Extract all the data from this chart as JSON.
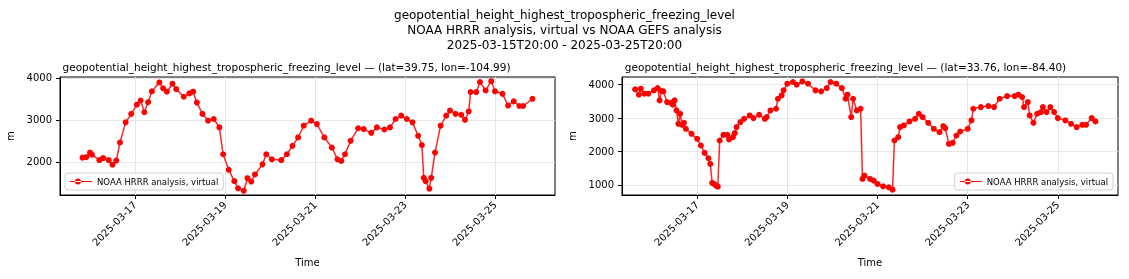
{
  "chart_data": [
    {
      "type": "line",
      "title": "geopotential_height_highest_tropospheric_freezing_level — (lat=39.75, lon=-104.99)",
      "annotations": [
        "geopotential_height_highest_tropospheric_freezing_level",
        "NOAA HRRR analysis, virtual vs NOAA GEFS analysis",
        "2025-03-15T20:00 - 2025-03-25T20:00"
      ],
      "xlabel": "Time",
      "ylabel": "m",
      "xlim": [
        "2025-03-15T08:00",
        "2025-03-26T08:00"
      ],
      "ylim": [
        1210,
        4020
      ],
      "xticks": [
        "2025-03-17",
        "2025-03-19",
        "2025-03-21",
        "2025-03-23",
        "2025-03-25"
      ],
      "yticks": [
        2000,
        3000,
        4000
      ],
      "grid": true,
      "legend": "bottom left",
      "marker": "circle",
      "line_style": "solid",
      "x": [
        "2025-03-15T20:00",
        "2025-03-15T22:00",
        "2025-03-16T00:00",
        "2025-03-16T01:00",
        "2025-03-16T05:00",
        "2025-03-16T07:00",
        "2025-03-16T10:00",
        "2025-03-16T12:00",
        "2025-03-16T14:00",
        "2025-03-16T16:00",
        "2025-03-16T19:00",
        "2025-03-16T22:00",
        "2025-03-17T01:00",
        "2025-03-17T03:00",
        "2025-03-17T05:00",
        "2025-03-17T07:00",
        "2025-03-17T09:00",
        "2025-03-17T13:00",
        "2025-03-17T15:00",
        "2025-03-17T17:00",
        "2025-03-17T20:00",
        "2025-03-17T22:00",
        "2025-03-18T02:00",
        "2025-03-18T05:00",
        "2025-03-18T07:00",
        "2025-03-18T09:00",
        "2025-03-18T12:00",
        "2025-03-18T15:00",
        "2025-03-18T18:00",
        "2025-03-18T21:00",
        "2025-03-18T23:00",
        "2025-03-19T02:00",
        "2025-03-19T05:00",
        "2025-03-19T07:00",
        "2025-03-19T10:00",
        "2025-03-19T12:00",
        "2025-03-19T14:00",
        "2025-03-19T16:00",
        "2025-03-19T20:00",
        "2025-03-19T22:00",
        "2025-03-20T01:00",
        "2025-03-20T06:00",
        "2025-03-20T09:00",
        "2025-03-20T12:00",
        "2025-03-20T15:00",
        "2025-03-20T18:00",
        "2025-03-20T22:00",
        "2025-03-21T01:00",
        "2025-03-21T05:00",
        "2025-03-21T09:00",
        "2025-03-21T12:00",
        "2025-03-21T14:00",
        "2025-03-21T16:00",
        "2025-03-21T19:00",
        "2025-03-21T23:00",
        "2025-03-22T02:00",
        "2025-03-22T06:00",
        "2025-03-22T09:00",
        "2025-03-22T13:00",
        "2025-03-22T16:00",
        "2025-03-22T19:00",
        "2025-03-22T22:00",
        "2025-03-23T01:00",
        "2025-03-23T04:00",
        "2025-03-23T07:00",
        "2025-03-23T09:00",
        "2025-03-23T10:00",
        "2025-03-23T11:00",
        "2025-03-23T13:00",
        "2025-03-23T14:00",
        "2025-03-23T16:00",
        "2025-03-23T19:00",
        "2025-03-23T22:00",
        "2025-03-24T00:00",
        "2025-03-24T03:00",
        "2025-03-24T06:00",
        "2025-03-24T08:00",
        "2025-03-24T10:00",
        "2025-03-24T11:00",
        "2025-03-24T14:00",
        "2025-03-24T16:00",
        "2025-03-24T19:00",
        "2025-03-24T22:00",
        "2025-03-25T00:00",
        "2025-03-25T04:00",
        "2025-03-25T07:00",
        "2025-03-25T10:00",
        "2025-03-25T13:00",
        "2025-03-25T15:00",
        "2025-03-25T20:00"
      ],
      "series": [
        {
          "name": "NOAA HRRR analysis, virtual",
          "color": "#ff0000",
          "values": [
            2100,
            2110,
            2220,
            2170,
            2040,
            2090,
            2040,
            1930,
            2030,
            2460,
            2940,
            3140,
            3360,
            3460,
            3180,
            3420,
            3680,
            3890,
            3750,
            3670,
            3860,
            3730,
            3550,
            3630,
            3670,
            3410,
            3140,
            2980,
            3020,
            2820,
            2180,
            1810,
            1540,
            1370,
            1310,
            1610,
            1530,
            1700,
            1940,
            2180,
            2060,
            2040,
            2180,
            2380,
            2580,
            2860,
            2980,
            2900,
            2580,
            2340,
            2060,
            2020,
            2180,
            2500,
            2800,
            2780,
            2690,
            2820,
            2770,
            2820,
            3020,
            3100,
            3020,
            2940,
            2620,
            2400,
            1620,
            1540,
            1360,
            1620,
            2220,
            2860,
            3100,
            3220,
            3140,
            3120,
            3000,
            3200,
            3660,
            3660,
            3900,
            3700,
            3920,
            3680,
            3620,
            3340,
            3440,
            3330,
            3330,
            3500
          ]
        }
      ]
    },
    {
      "type": "line",
      "title": "geopotential_height_highest_tropospheric_freezing_level — (lat=33.76, lon=-84.40)",
      "xlabel": "Time",
      "ylabel": "m",
      "xlim": [
        "2025-03-15T08:00",
        "2025-03-26T08:00"
      ],
      "ylim": [
        700,
        4230
      ],
      "xticks": [
        "2025-03-17",
        "2025-03-19",
        "2025-03-21",
        "2025-03-23",
        "2025-03-25"
      ],
      "yticks": [
        1000,
        2000,
        3000,
        4000
      ],
      "grid": true,
      "legend": "bottom right",
      "marker": "circle",
      "line_style": "solid",
      "x": [
        "2025-03-15T15:00",
        "2025-03-15T17:00",
        "2025-03-15T18:00",
        "2025-03-15T20:00",
        "2025-03-15T22:00",
        "2025-03-16T01:00",
        "2025-03-16T03:00",
        "2025-03-16T04:00",
        "2025-03-16T05:00",
        "2025-03-16T06:00",
        "2025-03-16T08:00",
        "2025-03-16T10:00",
        "2025-03-16T11:00",
        "2025-03-16T12:00",
        "2025-03-16T13:00",
        "2025-03-16T14:00",
        "2025-03-16T15:00",
        "2025-03-16T16:00",
        "2025-03-16T17:00",
        "2025-03-16T18:00",
        "2025-03-16T21:00",
        "2025-03-17T00:00",
        "2025-03-17T02:00",
        "2025-03-17T04:00",
        "2025-03-17T06:00",
        "2025-03-17T07:00",
        "2025-03-17T08:00",
        "2025-03-17T09:00",
        "2025-03-17T10:00",
        "2025-03-17T11:00",
        "2025-03-17T12:00",
        "2025-03-17T14:00",
        "2025-03-17T16:00",
        "2025-03-17T17:00",
        "2025-03-17T19:00",
        "2025-03-17T20:00",
        "2025-03-17T21:00",
        "2025-03-17T23:00",
        "2025-03-18T01:00",
        "2025-03-18T04:00",
        "2025-03-18T06:00",
        "2025-03-18T09:00",
        "2025-03-18T12:00",
        "2025-03-18T13:00",
        "2025-03-18T15:00",
        "2025-03-18T18:00",
        "2025-03-18T19:00",
        "2025-03-18T21:00",
        "2025-03-18T22:00",
        "2025-03-19T00:00",
        "2025-03-19T03:00",
        "2025-03-19T05:00",
        "2025-03-19T08:00",
        "2025-03-19T11:00",
        "2025-03-19T15:00",
        "2025-03-19T18:00",
        "2025-03-19T21:00",
        "2025-03-19T23:00",
        "2025-03-20T02:00",
        "2025-03-20T05:00",
        "2025-03-20T07:00",
        "2025-03-20T08:00",
        "2025-03-20T10:00",
        "2025-03-20T11:00",
        "2025-03-20T13:00",
        "2025-03-20T15:00",
        "2025-03-20T16:00",
        "2025-03-20T17:00",
        "2025-03-20T20:00",
        "2025-03-20T22:00",
        "2025-03-21T00:00",
        "2025-03-21T03:00",
        "2025-03-21T06:00",
        "2025-03-21T08:00",
        "2025-03-21T09:00",
        "2025-03-21T11:00",
        "2025-03-21T12:00",
        "2025-03-21T14:00",
        "2025-03-21T17:00",
        "2025-03-21T20:00",
        "2025-03-21T22:00",
        "2025-03-22T00:00",
        "2025-03-22T03:00",
        "2025-03-22T06:00",
        "2025-03-22T09:00",
        "2025-03-22T11:00",
        "2025-03-22T12:00",
        "2025-03-22T14:00",
        "2025-03-22T16:00",
        "2025-03-22T18:00",
        "2025-03-22T20:00",
        "2025-03-23T00:00",
        "2025-03-23T02:00",
        "2025-03-23T03:00",
        "2025-03-23T07:00",
        "2025-03-23T11:00",
        "2025-03-23T14:00",
        "2025-03-23T17:00",
        "2025-03-23T21:00",
        "2025-03-24T01:00",
        "2025-03-24T03:00",
        "2025-03-24T05:00",
        "2025-03-24T06:00",
        "2025-03-24T08:00",
        "2025-03-24T09:00",
        "2025-03-24T11:00",
        "2025-03-24T13:00",
        "2025-03-24T15:00",
        "2025-03-24T16:00",
        "2025-03-24T18:00",
        "2025-03-24T20:00",
        "2025-03-24T22:00",
        "2025-03-25T00:00",
        "2025-03-25T04:00",
        "2025-03-25T07:00",
        "2025-03-25T10:00",
        "2025-03-25T13:00",
        "2025-03-25T15:00",
        "2025-03-25T18:00",
        "2025-03-25T20:00"
      ],
      "series": [
        {
          "name": "NOAA HRRR analysis, virtual",
          "color": "#ff0000",
          "values": [
            3860,
            3700,
            3880,
            3730,
            3730,
            3830,
            3900,
            3530,
            3810,
            3800,
            3480,
            3460,
            3400,
            3530,
            3230,
            2830,
            3130,
            2800,
            2860,
            2680,
            2530,
            2380,
            2180,
            1960,
            1800,
            1630,
            1060,
            1030,
            980,
            950,
            2330,
            2500,
            2500,
            2360,
            2430,
            2550,
            2730,
            2880,
            2980,
            3080,
            3000,
            3100,
            2980,
            3030,
            3230,
            3280,
            3580,
            3680,
            3830,
            4030,
            4080,
            4000,
            4100,
            4030,
            3830,
            3800,
            3900,
            4080,
            4030,
            3900,
            3580,
            3700,
            3030,
            3580,
            3230,
            3280,
            1180,
            1280,
            1180,
            1130,
            1030,
            960,
            930,
            860,
            2330,
            2430,
            2730,
            2780,
            2900,
            2980,
            3130,
            3030,
            2860,
            2680,
            2580,
            2760,
            2700,
            2230,
            2260,
            2480,
            2600,
            2680,
            2930,
            3280,
            3330,
            3360,
            3330,
            3580,
            3660,
            3660,
            3700,
            3630,
            3330,
            3480,
            3080,
            2860,
            3130,
            3180,
            3330,
            3180,
            3330,
            3180,
            3000,
            2930,
            2830,
            2730,
            2800,
            2800,
            3000,
            2900
          ]
        }
      ]
    }
  ]
}
